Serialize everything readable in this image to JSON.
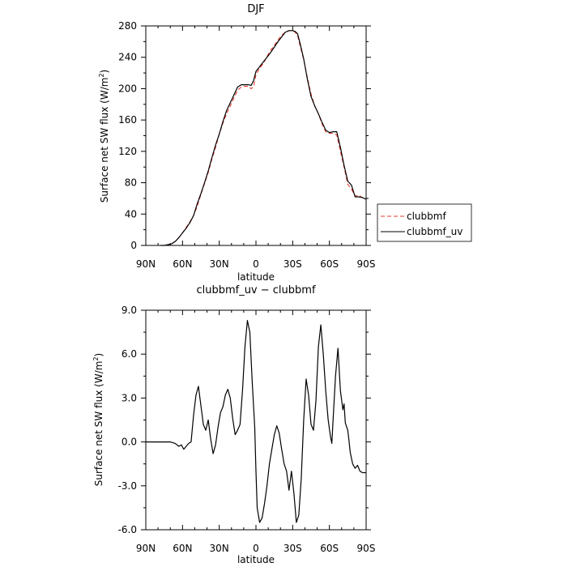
{
  "chart_data": [
    {
      "type": "line",
      "title": "DJF",
      "xlabel": "latitude",
      "ylabel": "Surface net SW flux (W/m²)",
      "ylabel_main": "Surface net SW flux (W/m",
      "ylabel_sup": "2",
      "ylabel_tail": ")",
      "xlim": [
        -90,
        90
      ],
      "ylim": [
        0,
        280
      ],
      "x_ticks": [
        -90,
        -60,
        -30,
        0,
        30,
        60,
        90
      ],
      "x_tick_labels": [
        "90N",
        "60N",
        "30N",
        "0",
        "30S",
        "60S",
        "90S"
      ],
      "y_ticks": [
        0,
        40,
        80,
        120,
        160,
        200,
        240,
        280
      ],
      "y_tick_labels": [
        "0",
        "40",
        "80",
        "120",
        "160",
        "200",
        "240",
        "280"
      ],
      "legend_placement": "outside-right",
      "series": [
        {
          "name": "clubbmf",
          "color": "#e8392f",
          "dash": "dashed",
          "x": [
            -78,
            -75,
            -72,
            -69,
            -66,
            -63,
            -60,
            -57,
            -54,
            -51,
            -48,
            -45,
            -42,
            -39,
            -36,
            -33,
            -30,
            -27,
            -24,
            -21,
            -18,
            -15,
            -12,
            -9,
            -6,
            -4,
            -2,
            0,
            3,
            6,
            9,
            12,
            15,
            18,
            21,
            24,
            27,
            30,
            32,
            34,
            36,
            39,
            42,
            45,
            48,
            51,
            54,
            57,
            60,
            63,
            66,
            69,
            72,
            75,
            78,
            81,
            84,
            87,
            90
          ],
          "y": [
            0,
            0,
            1,
            2,
            5,
            10,
            16,
            23,
            30,
            38,
            50,
            65,
            79,
            93,
            110,
            125,
            142,
            156,
            168,
            178,
            188,
            198,
            202,
            203,
            203,
            200,
            202,
            218,
            226,
            232,
            241,
            249,
            255,
            262,
            268,
            272,
            274,
            274,
            272,
            268,
            255,
            237,
            214,
            193,
            178,
            168,
            155,
            145,
            143,
            143,
            141,
            120,
            100,
            78,
            72,
            63,
            64,
            61,
            59
          ]
        },
        {
          "name": "clubbmf_uv",
          "color": "#000000",
          "dash": "solid",
          "x": [
            -78,
            -75,
            -72,
            -69,
            -66,
            -63,
            -60,
            -57,
            -54,
            -51,
            -48,
            -45,
            -42,
            -39,
            -36,
            -33,
            -30,
            -27,
            -24,
            -21,
            -18,
            -15,
            -12,
            -9,
            -6,
            -4,
            -2,
            0,
            3,
            6,
            9,
            12,
            15,
            18,
            21,
            24,
            27,
            30,
            32,
            34,
            36,
            39,
            42,
            45,
            48,
            51,
            54,
            57,
            60,
            63,
            66,
            69,
            72,
            75,
            78,
            81,
            84,
            87,
            90
          ],
          "y": [
            0,
            0,
            1,
            2,
            5,
            10,
            16,
            22,
            29,
            38,
            53,
            66,
            80,
            95,
            112,
            128,
            142,
            158,
            172,
            182,
            192,
            202,
            205,
            205,
            205,
            204,
            210,
            222,
            228,
            234,
            240,
            246,
            253,
            260,
            266,
            272,
            274,
            274,
            273,
            270,
            258,
            238,
            212,
            190,
            178,
            168,
            157,
            147,
            144,
            145,
            145,
            125,
            102,
            82,
            77,
            62,
            62,
            61,
            59
          ]
        }
      ]
    },
    {
      "type": "line",
      "title": "clubbmf_uv − clubbmf",
      "xlabel": "latitude",
      "ylabel": "Surface net SW flux (W/m²)",
      "ylabel_main": "Surface net SW flux (W/m",
      "ylabel_sup": "2",
      "ylabel_tail": ")",
      "xlim": [
        -90,
        90
      ],
      "ylim": [
        -6,
        9
      ],
      "x_ticks": [
        -90,
        -60,
        -30,
        0,
        30,
        60,
        90
      ],
      "x_tick_labels": [
        "90N",
        "60N",
        "30N",
        "0",
        "30S",
        "60S",
        "90S"
      ],
      "y_ticks": [
        -6,
        -3,
        0,
        3,
        6,
        9
      ],
      "y_tick_labels": [
        "-6.0",
        "-3.0",
        "0.0",
        "3.0",
        "6.0",
        "9.0"
      ],
      "series": [
        {
          "name": "clubbmf_uv − clubbmf",
          "color": "#000000",
          "dash": "solid",
          "x": [
            -90,
            -80,
            -70,
            -66,
            -63,
            -61,
            -59,
            -57,
            -55,
            -53,
            -51,
            -49,
            -47,
            -45,
            -43,
            -41,
            -39,
            -37,
            -35,
            -33,
            -31,
            -29,
            -27,
            -25,
            -23,
            -21,
            -19,
            -17,
            -15,
            -13,
            -11,
            -9,
            -7,
            -5,
            -3,
            -1,
            0,
            1,
            3,
            5,
            7,
            9,
            11,
            13,
            15,
            17,
            19,
            21,
            23,
            25,
            27,
            29,
            31,
            33,
            35,
            37,
            39,
            41,
            43,
            45,
            47,
            49,
            51,
            53,
            55,
            57,
            59,
            61,
            62,
            63,
            65,
            67,
            69,
            71,
            72,
            73,
            75,
            76,
            77,
            79,
            81,
            83,
            85,
            87,
            90
          ],
          "y": [
            0,
            0,
            0,
            -0.1,
            -0.3,
            -0.2,
            -0.5,
            -0.3,
            -0.1,
            0,
            1.8,
            3.2,
            3.8,
            2.5,
            1.2,
            0.8,
            1.5,
            0.2,
            -0.8,
            -0.2,
            1,
            2,
            2.4,
            3.2,
            3.6,
            3,
            1.6,
            0.5,
            0.8,
            1.2,
            3.5,
            6.5,
            8.3,
            7.5,
            4,
            1,
            -2,
            -4.5,
            -5.5,
            -5.2,
            -4.2,
            -3,
            -1.5,
            -0.5,
            0.5,
            1.1,
            0.6,
            -0.5,
            -1.5,
            -2,
            -3.3,
            -2,
            -3.5,
            -5.5,
            -5,
            -2.5,
            1.5,
            4.3,
            3.2,
            1.2,
            0.8,
            2.8,
            6.5,
            8,
            6,
            3.5,
            1.5,
            0.3,
            -0.1,
            1.5,
            4.5,
            6.4,
            3.5,
            2.2,
            2.6,
            1.3,
            0.8,
            0.1,
            -0.7,
            -1.5,
            -1.8,
            -1.6,
            -2,
            -2.1,
            -2.1
          ]
        }
      ]
    }
  ]
}
